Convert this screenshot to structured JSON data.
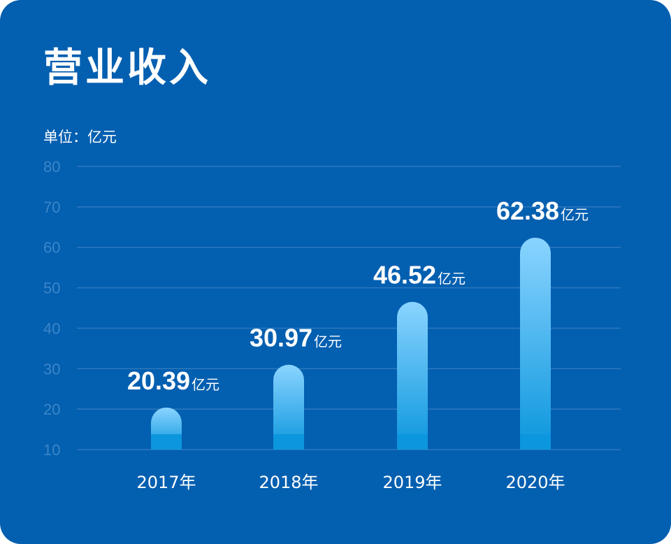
{
  "chart_data": {
    "type": "bar",
    "title": "营业收入",
    "unit_label": "单位：亿元",
    "categories": [
      "2017年",
      "2018年",
      "2019年",
      "2020年"
    ],
    "values": [
      20.39,
      30.97,
      46.52,
      62.38
    ],
    "data_labels": [
      "20.39",
      "30.97",
      "46.52",
      "62.38"
    ],
    "value_suffix": "亿元",
    "yticks": [
      "10",
      "20",
      "30",
      "40",
      "50",
      "60",
      "70",
      "80"
    ],
    "ylim": [
      10,
      80
    ],
    "grid": true,
    "colors": {
      "background": "#035fb0",
      "bar_top": "#8ad4ff",
      "bar_bottom": "#0b96dd",
      "gridline": "#2e79bd",
      "tick_text": "#3b86c8"
    }
  }
}
